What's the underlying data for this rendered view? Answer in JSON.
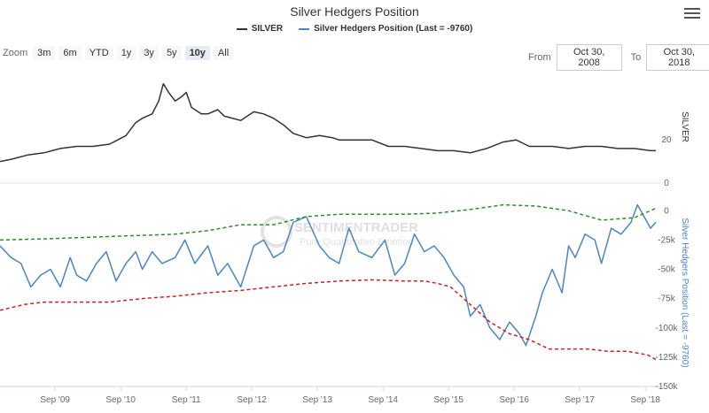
{
  "title": "Silver Hedgers Position",
  "legend": [
    {
      "label": "SILVER",
      "color": "#333333"
    },
    {
      "label": "Silver Hedgers Position (Last = -9760)",
      "color": "#4a86c5"
    }
  ],
  "zoom": {
    "label": "Zoom",
    "buttons": [
      "3m",
      "6m",
      "YTD",
      "1y",
      "3y",
      "5y",
      "10y",
      "All"
    ],
    "active": "10y"
  },
  "range": {
    "from_label": "From",
    "from_value": "Oct 30, 2008",
    "to_label": "To",
    "to_value": "Oct 30, 2018"
  },
  "watermark": {
    "line1": "SENTIMENTRADER",
    "line2": "Pure Quantitative Emotion"
  },
  "colors": {
    "silver": "#333333",
    "hedgers": "#4a86c5",
    "upper_band": "#2e8b2e",
    "lower_band": "#cc2222"
  },
  "chart_data": {
    "type": "line",
    "x_tick_labels": [
      "Sep '09",
      "Sep '10",
      "Sep '11",
      "Sep '12",
      "Sep '13",
      "Sep '14",
      "Sep '15",
      "Sep '16",
      "Sep '17",
      "Sep '18"
    ],
    "x_range": [
      2008.83,
      2018.83
    ],
    "panes": [
      {
        "name": "SILVER",
        "axis_title": "SILVER",
        "y_ticks": [
          0,
          20
        ],
        "ylim": [
          0,
          52
        ],
        "series": [
          {
            "name": "SILVER",
            "x": [
              2008.83,
              2009.0,
              2009.25,
              2009.5,
              2009.75,
              2010.0,
              2010.25,
              2010.5,
              2010.75,
              2010.9,
              2011.0,
              2011.15,
              2011.25,
              2011.32,
              2011.4,
              2011.5,
              2011.6,
              2011.67,
              2011.75,
              2011.9,
              2012.0,
              2012.15,
              2012.25,
              2012.5,
              2012.7,
              2012.85,
              2013.0,
              2013.15,
              2013.3,
              2013.5,
              2013.7,
              2013.9,
              2014.0,
              2014.25,
              2014.5,
              2014.75,
              2015.0,
              2015.25,
              2015.5,
              2015.75,
              2016.0,
              2016.25,
              2016.5,
              2016.7,
              2016.9,
              2017.0,
              2017.25,
              2017.5,
              2017.75,
              2018.0,
              2018.25,
              2018.5,
              2018.75,
              2018.83
            ],
            "values": [
              10,
              11,
              13,
              14,
              16,
              17,
              17,
              18,
              22,
              28,
              30,
              32,
              38,
              46,
              42,
              38,
              40,
              42,
              35,
              32,
              32,
              34,
              31,
              29,
              33,
              32,
              30,
              27,
              23,
              21,
              22,
              21,
              20,
              20,
              20,
              17,
              17,
              16,
              15,
              15,
              14,
              16,
              19,
              20,
              17,
              17,
              17,
              16,
              17,
              17,
              16,
              16,
              15,
              15
            ]
          }
        ]
      },
      {
        "name": "Silver Hedgers Position",
        "axis_title": "Silver Hedgers Position (Last = -9760)",
        "y_ticks": [
          0,
          -25000,
          -50000,
          -75000,
          -100000,
          -125000,
          -150000
        ],
        "y_tick_labels": [
          "0",
          "-25k",
          "-50k",
          "-75k",
          "-100k",
          "-125k",
          "-150k"
        ],
        "ylim": [
          -150000,
          10000
        ],
        "series": [
          {
            "name": "Silver Hedgers Position",
            "x": [
              2008.83,
              2009.0,
              2009.15,
              2009.3,
              2009.45,
              2009.6,
              2009.75,
              2009.9,
              2010.0,
              2010.15,
              2010.3,
              2010.45,
              2010.6,
              2010.75,
              2010.9,
              2011.0,
              2011.15,
              2011.3,
              2011.5,
              2011.65,
              2011.8,
              2012.0,
              2012.15,
              2012.3,
              2012.5,
              2012.7,
              2012.85,
              2013.0,
              2013.15,
              2013.3,
              2013.5,
              2013.7,
              2013.85,
              2014.0,
              2014.15,
              2014.3,
              2014.5,
              2014.7,
              2014.85,
              2015.0,
              2015.15,
              2015.3,
              2015.45,
              2015.6,
              2015.75,
              2015.9,
              2016.0,
              2016.15,
              2016.3,
              2016.45,
              2016.6,
              2016.75,
              2016.85,
              2017.0,
              2017.1,
              2017.25,
              2017.4,
              2017.5,
              2017.6,
              2017.75,
              2017.9,
              2018.0,
              2018.15,
              2018.3,
              2018.45,
              2018.55,
              2018.65,
              2018.75,
              2018.83
            ],
            "values": [
              -30000,
              -40000,
              -45000,
              -65000,
              -55000,
              -50000,
              -65000,
              -40000,
              -55000,
              -60000,
              -45000,
              -35000,
              -60000,
              -45000,
              -35000,
              -50000,
              -35000,
              -45000,
              -40000,
              -25000,
              -45000,
              -30000,
              -55000,
              -45000,
              -65000,
              -30000,
              -25000,
              -40000,
              -35000,
              -10000,
              -5000,
              -30000,
              -40000,
              -45000,
              -15000,
              -35000,
              -40000,
              -25000,
              -55000,
              -45000,
              -20000,
              -35000,
              -30000,
              -40000,
              -55000,
              -65000,
              -90000,
              -80000,
              -100000,
              -110000,
              -95000,
              -105000,
              -115000,
              -90000,
              -70000,
              -50000,
              -70000,
              -30000,
              -40000,
              -20000,
              -25000,
              -45000,
              -15000,
              -20000,
              -10000,
              5000,
              -5000,
              -15000,
              -9760
            ]
          },
          {
            "name": "upper band",
            "x": [
              2008.83,
              2009.5,
              2010.5,
              2011.0,
              2011.5,
              2012.0,
              2012.5,
              2013.0,
              2013.5,
              2014.0,
              2014.5,
              2015.0,
              2015.5,
              2016.0,
              2016.5,
              2017.0,
              2017.5,
              2018.0,
              2018.5,
              2018.83
            ],
            "values": [
              -25000,
              -24000,
              -22000,
              -21000,
              -20000,
              -17000,
              -12000,
              -12000,
              -5000,
              -3000,
              -3000,
              -3000,
              -2000,
              1000,
              5000,
              4000,
              0,
              -8000,
              -6000,
              2000
            ]
          },
          {
            "name": "lower band",
            "x": [
              2008.83,
              2009.2,
              2009.5,
              2010.0,
              2010.5,
              2011.0,
              2011.5,
              2012.0,
              2012.5,
              2013.0,
              2013.5,
              2014.0,
              2014.5,
              2015.0,
              2015.3,
              2015.5,
              2015.7,
              2016.0,
              2016.3,
              2016.6,
              2016.9,
              2017.2,
              2017.5,
              2017.8,
              2018.1,
              2018.4,
              2018.7,
              2018.83
            ],
            "values": [
              -85000,
              -80000,
              -78000,
              -78000,
              -78000,
              -75000,
              -73000,
              -70000,
              -68000,
              -65000,
              -62000,
              -60000,
              -59000,
              -60000,
              -60000,
              -62000,
              -65000,
              -80000,
              -95000,
              -105000,
              -110000,
              -118000,
              -118000,
              -118000,
              -120000,
              -120000,
              -123000,
              -127000
            ]
          }
        ]
      }
    ]
  }
}
